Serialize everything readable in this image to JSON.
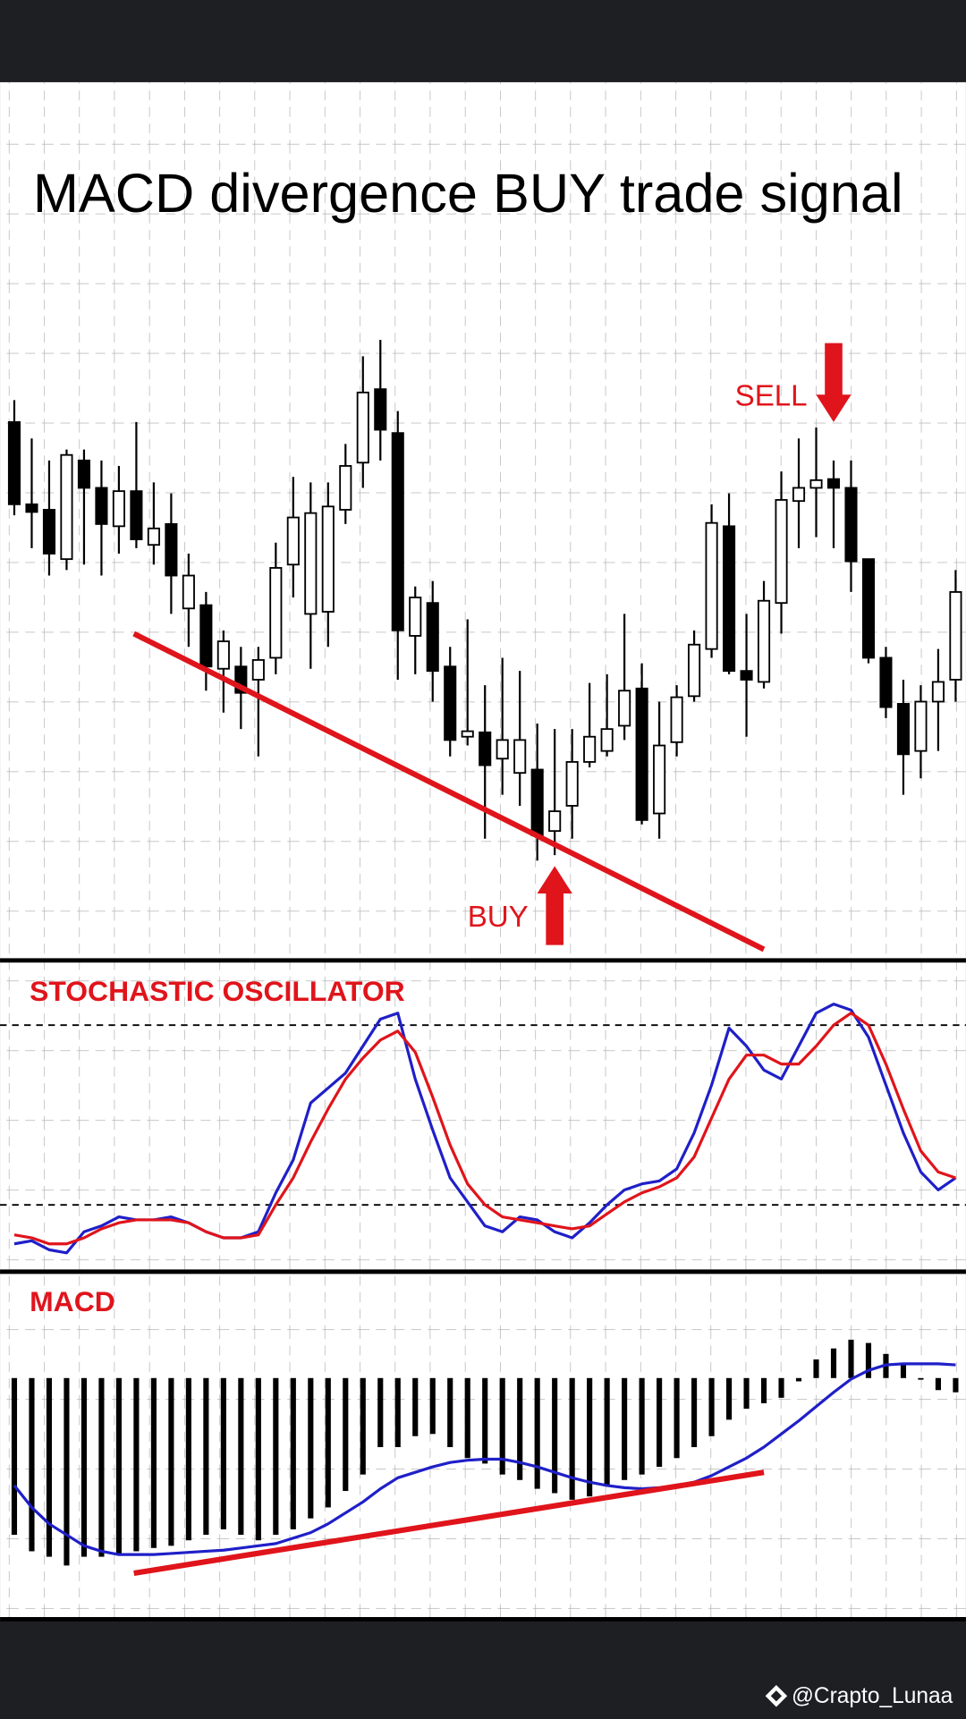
{
  "title": "MACD divergence BUY trade signal",
  "watermark": "@Crapto_Lunaa",
  "chart_data": [
    {
      "type": "candlestick",
      "open": [
        495,
        420,
        415,
        370,
        460,
        435,
        400,
        432,
        383,
        402,
        325,
        328,
        270,
        272,
        260,
        280,
        365,
        320,
        322,
        415,
        458,
        525,
        485,
        300,
        330,
        272,
        208,
        212,
        188,
        175,
        178,
        122,
        145,
        185,
        195,
        218,
        252,
        138,
        203,
        245,
        288,
        400,
        268,
        258,
        330,
        423,
        435,
        443,
        435,
        370,
        280,
        238,
        195,
        240,
        260
      ],
      "high": [
        515,
        480,
        460,
        470,
        470,
        460,
        455,
        495,
        440,
        430,
        375,
        340,
        305,
        290,
        290,
        385,
        445,
        440,
        440,
        475,
        555,
        570,
        505,
        345,
        350,
        290,
        315,
        255,
        280,
        268,
        220,
        215,
        215,
        257,
        265,
        320,
        275,
        240,
        255,
        305,
        420,
        430,
        320,
        350,
        450,
        480,
        490,
        460,
        460,
        370,
        290,
        260,
        255,
        288,
        360
      ],
      "low": [
        410,
        380,
        355,
        360,
        365,
        355,
        375,
        380,
        365,
        320,
        290,
        250,
        230,
        215,
        190,
        265,
        335,
        270,
        290,
        402,
        435,
        460,
        260,
        265,
        240,
        190,
        200,
        115,
        155,
        145,
        95,
        100,
        115,
        180,
        190,
        205,
        128,
        115,
        190,
        240,
        280,
        265,
        208,
        252,
        302,
        380,
        390,
        380,
        340,
        275,
        225,
        155,
        170,
        195,
        240
      ],
      "close": [
        420,
        413,
        375,
        465,
        435,
        402,
        432,
        388,
        398,
        355,
        355,
        272,
        295,
        248,
        278,
        362,
        408,
        412,
        418,
        455,
        522,
        488,
        305,
        335,
        268,
        205,
        213,
        182,
        205,
        205,
        118,
        140,
        185,
        208,
        215,
        250,
        132,
        200,
        244,
        292,
        403,
        268,
        260,
        332,
        424,
        435,
        442,
        435,
        368,
        280,
        235,
        192,
        240,
        258,
        340
      ],
      "ylim": [
        5,
        805
      ],
      "up_color": "#ffffff",
      "down_color": "#000000",
      "line_color": "#e0141b",
      "trendline": {
        "x": [
          6.86,
          43
        ],
        "y": [
          302,
          14
        ]
      },
      "annotations": [
        {
          "text": "SELL",
          "x": 47,
          "y": 495,
          "direction": "down"
        },
        {
          "text": "BUY",
          "x": 31,
          "y": 90,
          "direction": "up"
        }
      ]
    },
    {
      "type": "line",
      "title": "STOCHASTIC OSCILLATOR",
      "ylim": [
        0,
        100
      ],
      "levels": [
        20,
        80
      ],
      "series": [
        {
          "color": "#1f1fc8",
          "values": [
            7,
            8,
            5,
            4,
            11,
            13,
            16,
            15,
            15,
            16,
            14,
            11,
            9,
            9,
            11,
            24,
            35,
            54,
            59,
            64,
            73,
            82,
            84,
            62,
            45,
            29,
            21,
            13,
            11,
            16,
            15,
            11,
            9,
            14,
            20,
            25,
            27,
            28,
            32,
            44,
            60,
            79,
            73,
            65,
            62,
            73,
            84,
            87,
            85,
            76,
            60,
            44,
            31,
            25,
            29
          ]
        },
        {
          "color": "#e0141b",
          "values": [
            10,
            9,
            7,
            7,
            9,
            12,
            14,
            15,
            15,
            15,
            14,
            11,
            9,
            9,
            10,
            20,
            29,
            41,
            52,
            62,
            69,
            75,
            78,
            71,
            56,
            40,
            27,
            20,
            16,
            15,
            14,
            13,
            12,
            13,
            17,
            21,
            24,
            26,
            29,
            36,
            49,
            62,
            70,
            70,
            67,
            67,
            73,
            80,
            84,
            80,
            67,
            52,
            38,
            31,
            29
          ]
        }
      ]
    },
    {
      "type": "macd",
      "title": "MACD",
      "ylim": [
        -2.1,
        1.0
      ],
      "histogram": {
        "color": "#000000",
        "values": [
          -1.43,
          -1.58,
          -1.63,
          -1.71,
          -1.63,
          -1.63,
          -1.61,
          -1.58,
          -1.55,
          -1.53,
          -1.48,
          -1.43,
          -1.38,
          -1.43,
          -1.48,
          -1.43,
          -1.38,
          -1.28,
          -1.18,
          -1.03,
          -0.88,
          -0.63,
          -0.63,
          -0.53,
          -0.51,
          -0.63,
          -0.73,
          -0.78,
          -0.88,
          -0.93,
          -1.01,
          -1.05,
          -1.11,
          -1.08,
          -0.98,
          -0.93,
          -0.88,
          -0.81,
          -0.73,
          -0.63,
          -0.53,
          -0.38,
          -0.28,
          -0.23,
          -0.18,
          -0.03,
          0.17,
          0.27,
          0.35,
          0.32,
          0.22,
          0.12,
          -0.01,
          -0.11,
          -0.13
        ]
      },
      "signal": {
        "color": "#1f1fc8",
        "values": [
          -0.98,
          -1.18,
          -1.33,
          -1.43,
          -1.53,
          -1.58,
          -1.61,
          -1.61,
          -1.61,
          -1.6,
          -1.59,
          -1.58,
          -1.57,
          -1.55,
          -1.53,
          -1.51,
          -1.46,
          -1.41,
          -1.33,
          -1.23,
          -1.13,
          -1.01,
          -0.91,
          -0.86,
          -0.81,
          -0.77,
          -0.75,
          -0.74,
          -0.74,
          -0.77,
          -0.81,
          -0.86,
          -0.91,
          -0.95,
          -0.98,
          -1.0,
          -1.01,
          -1.0,
          -0.98,
          -0.95,
          -0.89,
          -0.81,
          -0.73,
          -0.63,
          -0.51,
          -0.39,
          -0.26,
          -0.13,
          -0.01,
          0.07,
          0.12,
          0.13,
          0.13,
          0.13,
          0.12
        ]
      },
      "trendline": {
        "color": "#e0141b",
        "x": [
          6.86,
          43
        ],
        "y": [
          -1.78,
          -0.86
        ]
      }
    }
  ]
}
